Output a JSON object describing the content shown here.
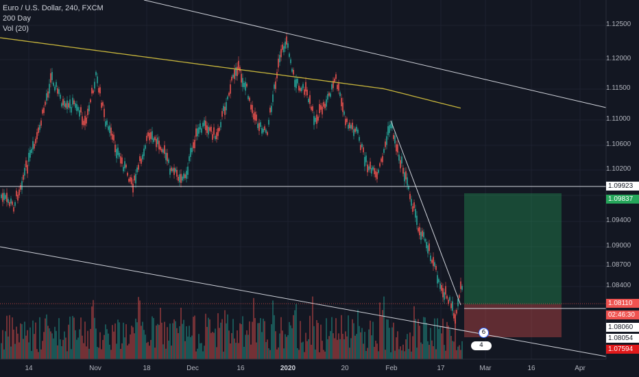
{
  "legend": {
    "symbol_line": "Euro / U.S. Dollar, 240, FXCM",
    "ma_line": "200 Day",
    "vol_line": "Vol (20)"
  },
  "price_axis": {
    "ticks": [
      "1.12500",
      "1.12000",
      "1.11500",
      "1.11000",
      "1.10600",
      "1.10200",
      "1.09400",
      "1.09000",
      "1.08700",
      "1.08400"
    ]
  },
  "price_tags": {
    "resistance": {
      "text": "1.09923",
      "bg": "#ffffff",
      "fg": "#131722"
    },
    "take_profit": {
      "text": "1.09837",
      "bg": "#26a65b",
      "fg": "#ffffff"
    },
    "current": {
      "text": "1.08110",
      "bg": "#ef5350",
      "fg": "#ffffff"
    },
    "countdown": {
      "text": "02:46:30",
      "bg": "#ef5350",
      "fg": "#ffffff"
    },
    "level_a": {
      "text": "1.08060",
      "bg": "#ffffff",
      "fg": "#131722"
    },
    "level_b": {
      "text": "1.08054",
      "bg": "#ffffff",
      "fg": "#131722"
    },
    "stop_loss": {
      "text": "1.07594",
      "bg": "#e0191b",
      "fg": "#ffffff"
    }
  },
  "time_axis": [
    "14",
    "Nov",
    "18",
    "Dec",
    "16",
    "2020",
    "20",
    "Feb",
    "17",
    "Mar",
    "16",
    "Apr"
  ],
  "event_badge": {
    "count": "6",
    "label": "4"
  },
  "colors": {
    "background": "#131722",
    "grid": "#1e2230",
    "up": "#26a69a",
    "down": "#ef5350",
    "ma": "#c8b63c",
    "trendline": "#d1d4dc",
    "tp_zone": "rgba(38,166,91,0.35)",
    "sl_zone": "rgba(239,83,80,0.35)"
  }
}
